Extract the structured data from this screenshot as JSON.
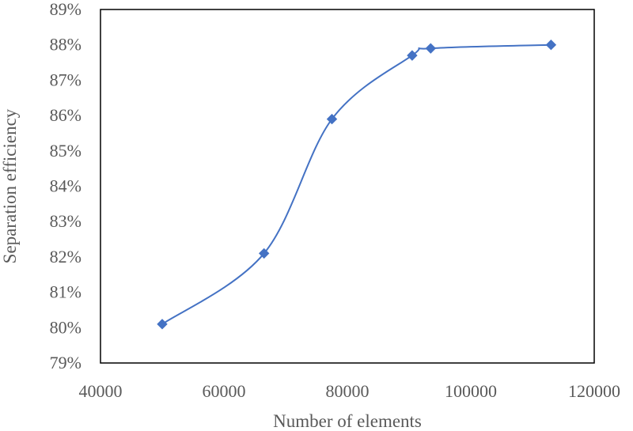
{
  "chart_data": {
    "type": "scatter",
    "title": "",
    "xlabel": "Number of elements",
    "ylabel": "Separation efficiency",
    "xlim": [
      40000,
      120000
    ],
    "ylim": [
      79,
      89
    ],
    "x_ticks": [
      40000,
      60000,
      80000,
      100000,
      120000
    ],
    "x_tick_labels": [
      "40000",
      "60000",
      "80000",
      "100000",
      "120000"
    ],
    "y_ticks": [
      79,
      80,
      81,
      82,
      83,
      84,
      85,
      86,
      87,
      88,
      89
    ],
    "y_tick_labels": [
      "79%",
      "80%",
      "81%",
      "82%",
      "83%",
      "84%",
      "85%",
      "86%",
      "87%",
      "88%",
      "89%"
    ],
    "grid": false,
    "legend": "none",
    "smooth_line": true,
    "series": [
      {
        "color": "#4472C4",
        "marker": "diamond",
        "x": [
          50000,
          66500,
          77500,
          90500,
          93500,
          113000
        ],
        "y": [
          80.1,
          82.1,
          85.9,
          87.7,
          87.9,
          88.0
        ]
      }
    ]
  }
}
